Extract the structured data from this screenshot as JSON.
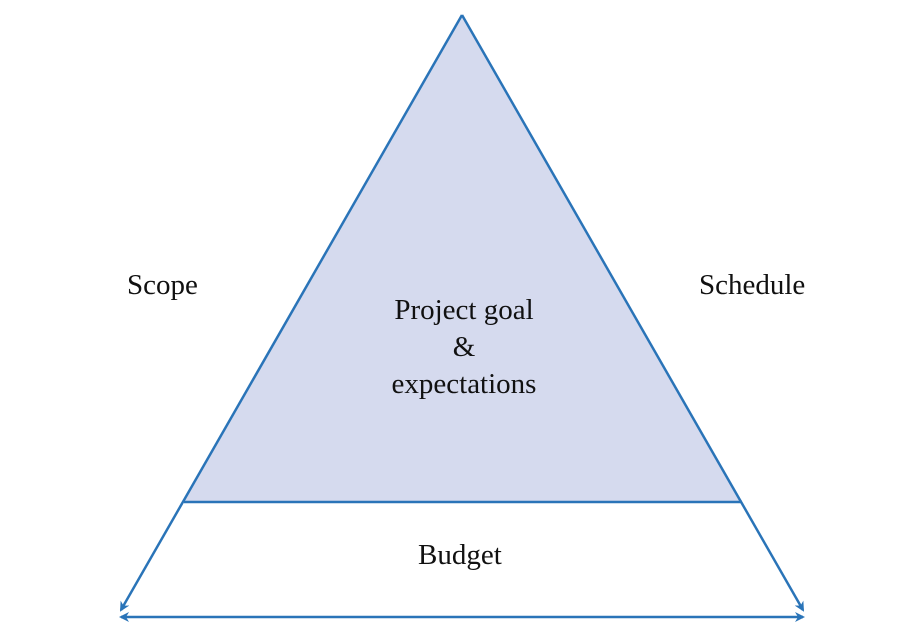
{
  "diagram": {
    "labels": {
      "left": "Scope",
      "right": "Schedule",
      "bottom": "Budget"
    },
    "center": {
      "line1": "Project goal",
      "line2": "&",
      "line3": "expectations"
    }
  },
  "colors": {
    "stroke": "#2a74b8",
    "fill": "#d5daee",
    "text": "#111111"
  }
}
